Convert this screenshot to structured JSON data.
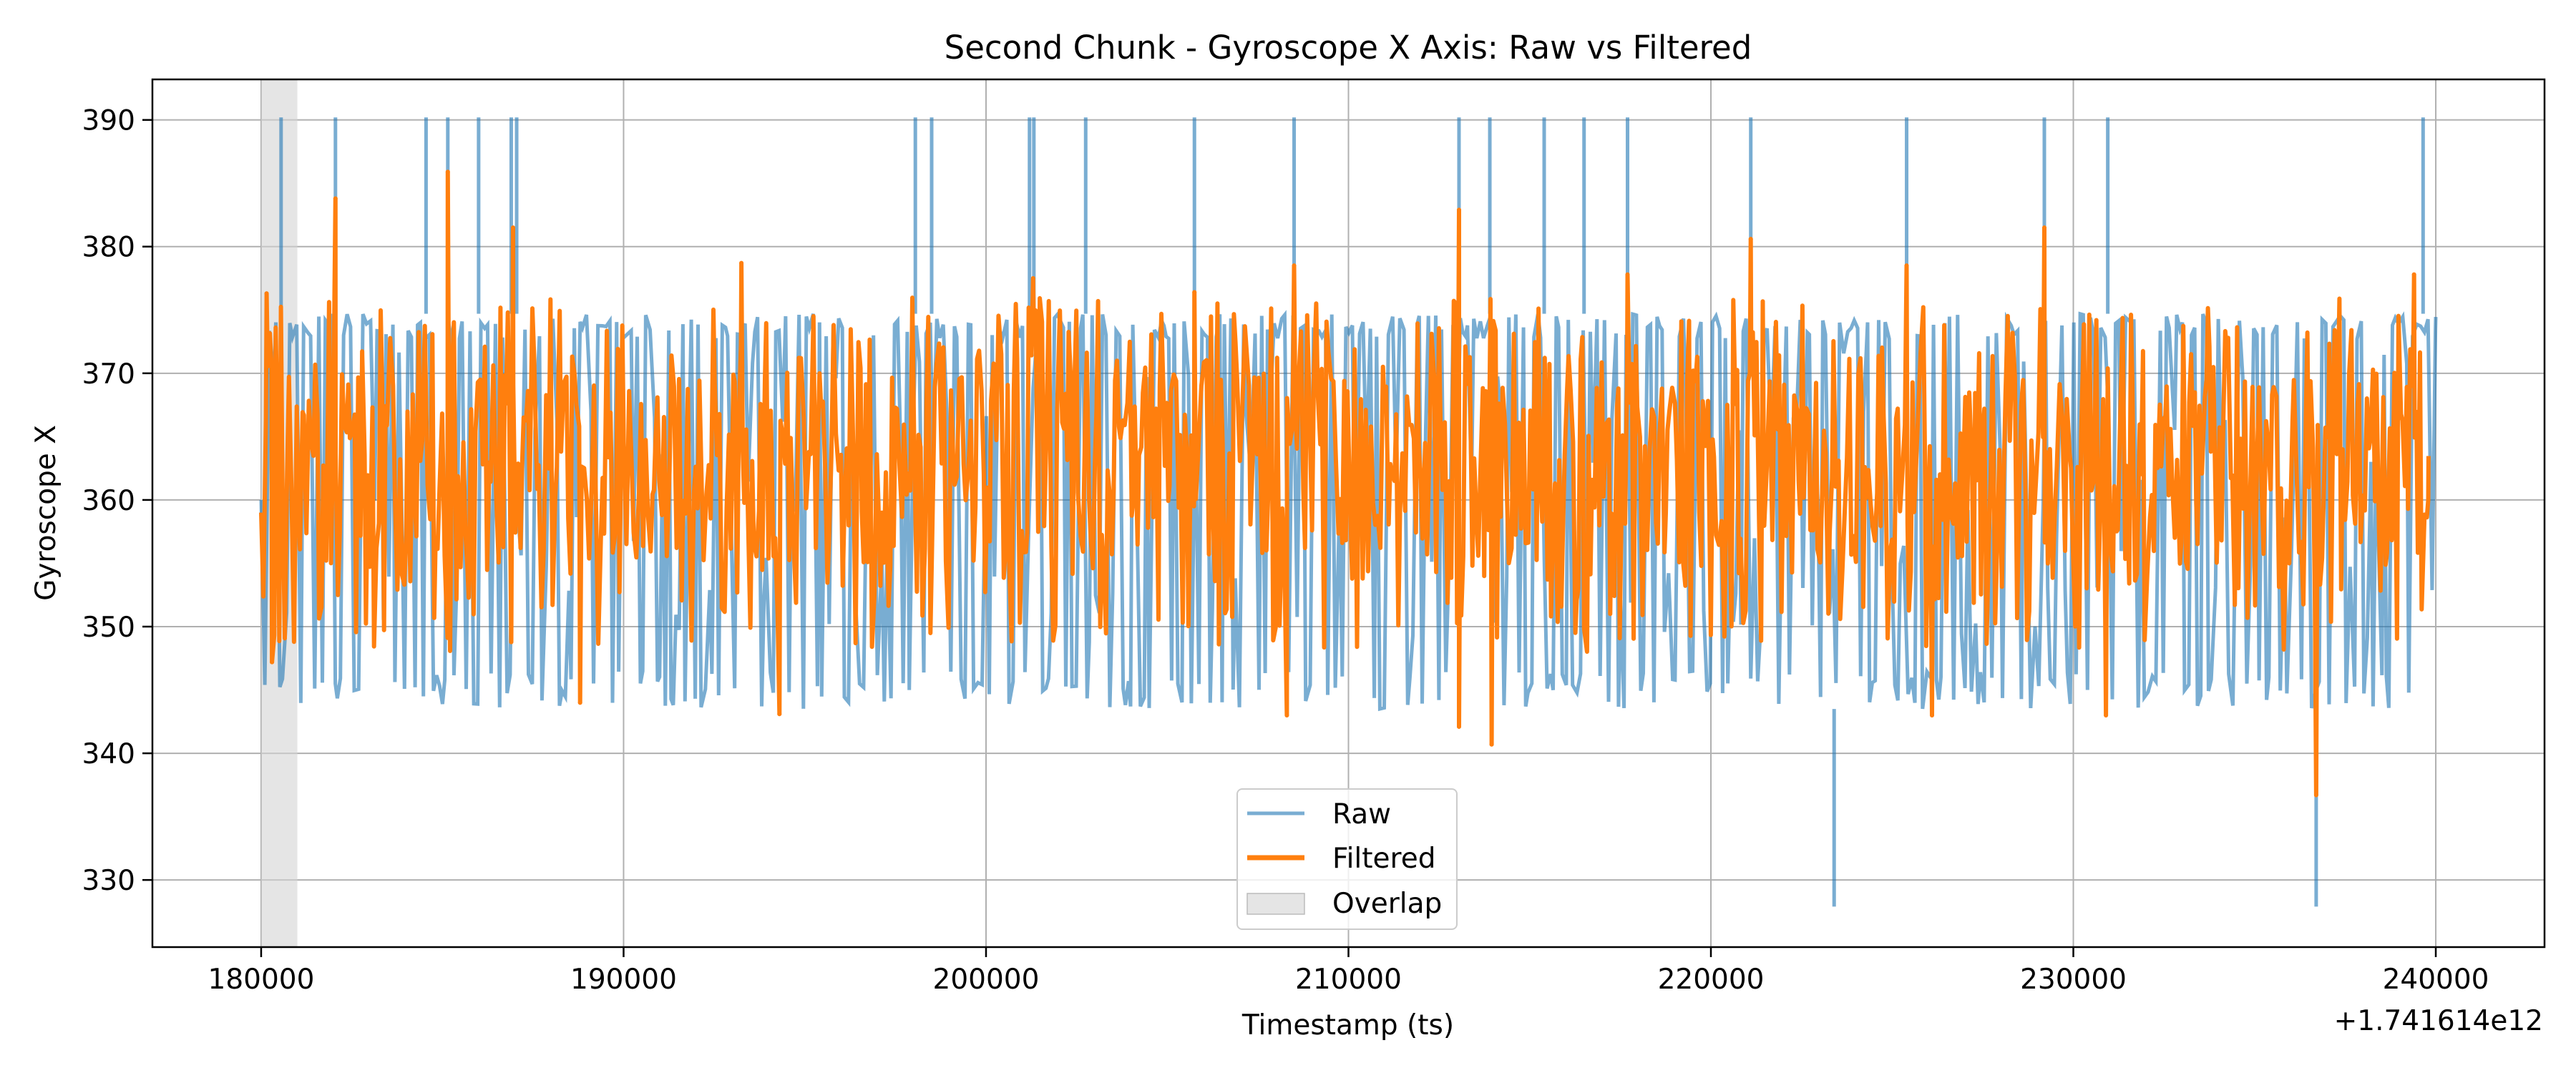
{
  "chart_data": {
    "type": "line",
    "title": "Second Chunk - Gyroscope X Axis: Raw vs Filtered",
    "xlabel": "Timestamp (ts)",
    "ylabel": "Gyroscope X",
    "x_offset_label": "+1.741614e12",
    "xlim": [
      177000,
      243000
    ],
    "ylim": [
      324.7,
      393.2
    ],
    "x_ticks": [
      180000,
      190000,
      200000,
      210000,
      220000,
      230000,
      240000
    ],
    "y_ticks": [
      330,
      340,
      350,
      360,
      370,
      380,
      390
    ],
    "grid": true,
    "legend_position": "bottom-center",
    "overlap_region": {
      "label": "Overlap",
      "x_start": 180000,
      "x_end": 181000,
      "color": "#d3d3d3"
    },
    "series": [
      {
        "name": "Raw",
        "color": "#1f77b4",
        "x_range": [
          180000,
          240000
        ],
        "typical_band": [
          343.5,
          374.7
        ],
        "spikes": [
          {
            "x": 180550,
            "y": 390.2
          },
          {
            "x": 182050,
            "y": 390.2
          },
          {
            "x": 184550,
            "y": 390.2
          },
          {
            "x": 185150,
            "y": 390.2
          },
          {
            "x": 186000,
            "y": 390.2
          },
          {
            "x": 186900,
            "y": 390.2
          },
          {
            "x": 187050,
            "y": 390.2
          },
          {
            "x": 198050,
            "y": 390.2
          },
          {
            "x": 198500,
            "y": 390.2
          },
          {
            "x": 201200,
            "y": 390.2
          },
          {
            "x": 201320,
            "y": 390.2
          },
          {
            "x": 202750,
            "y": 390.2
          },
          {
            "x": 205750,
            "y": 390.2
          },
          {
            "x": 208500,
            "y": 390.2
          },
          {
            "x": 213050,
            "y": 390.2
          },
          {
            "x": 213900,
            "y": 390.2
          },
          {
            "x": 215400,
            "y": 390.2
          },
          {
            "x": 216500,
            "y": 390.2
          },
          {
            "x": 217700,
            "y": 390.2
          },
          {
            "x": 221100,
            "y": 390.2
          },
          {
            "x": 225400,
            "y": 390.2
          },
          {
            "x": 229200,
            "y": 390.2
          },
          {
            "x": 230950,
            "y": 390.2
          },
          {
            "x": 239650,
            "y": 390.2
          },
          {
            "x": 223400,
            "y": 327.9
          },
          {
            "x": 236700,
            "y": 327.9
          }
        ]
      },
      {
        "name": "Filtered",
        "color": "#ff7f0e",
        "x_range": [
          180000,
          239800
        ],
        "typical_band": [
          355,
          370
        ],
        "peaks": [
          {
            "x": 180150,
            "y": 376.3
          },
          {
            "x": 182050,
            "y": 383.8
          },
          {
            "x": 185150,
            "y": 385.9
          },
          {
            "x": 186950,
            "y": 381.5
          },
          {
            "x": 193250,
            "y": 378.7
          },
          {
            "x": 201300,
            "y": 377.5
          },
          {
            "x": 205750,
            "y": 376.4
          },
          {
            "x": 208500,
            "y": 378.5
          },
          {
            "x": 213050,
            "y": 382.9
          },
          {
            "x": 217700,
            "y": 377.8
          },
          {
            "x": 221100,
            "y": 380.6
          },
          {
            "x": 225400,
            "y": 378.5
          },
          {
            "x": 229200,
            "y": 381.5
          },
          {
            "x": 239400,
            "y": 377.8
          }
        ],
        "troughs": [
          {
            "x": 180300,
            "y": 347.2
          },
          {
            "x": 188800,
            "y": 344.0
          },
          {
            "x": 194300,
            "y": 343.1
          },
          {
            "x": 208300,
            "y": 343.0
          },
          {
            "x": 213050,
            "y": 342.1
          },
          {
            "x": 213950,
            "y": 340.7
          },
          {
            "x": 226100,
            "y": 343.0
          },
          {
            "x": 230900,
            "y": 343.0
          },
          {
            "x": 236700,
            "y": 336.7
          }
        ]
      }
    ]
  }
}
